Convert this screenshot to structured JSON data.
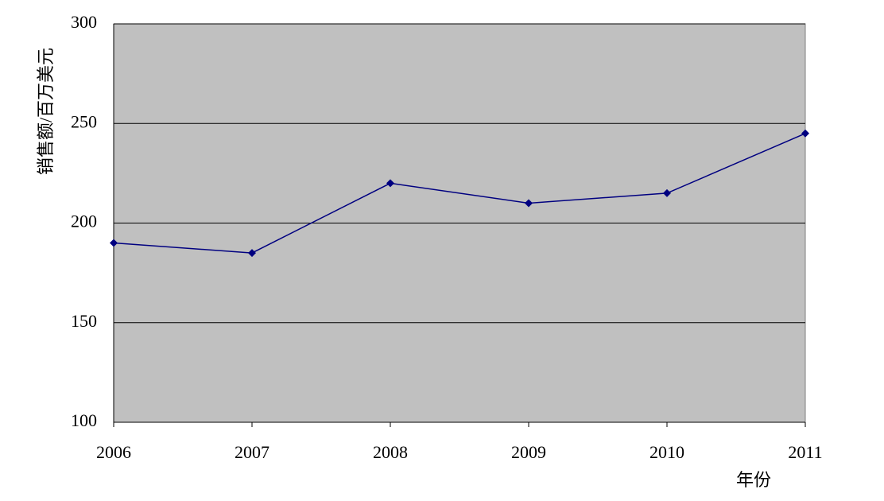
{
  "chart_data": {
    "type": "line",
    "x_label": "年份",
    "y_label": "销售额/百万美元",
    "x": [
      2006,
      2007,
      2008,
      2009,
      2010,
      2011
    ],
    "values": [
      190,
      185,
      220,
      210,
      215,
      245
    ],
    "color": "#000080",
    "xlim": [
      2006,
      2011
    ],
    "xticks": [
      2006,
      2007,
      2008,
      2009,
      2010,
      2011
    ],
    "ylim": [
      100,
      300
    ],
    "yticks": [
      100,
      150,
      200,
      250,
      300
    ],
    "grid": true,
    "plot_background": "#c0c0c0"
  }
}
